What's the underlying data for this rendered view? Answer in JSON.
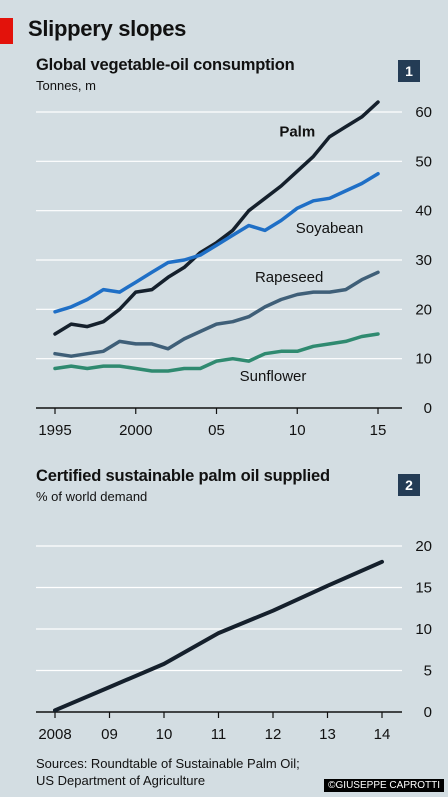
{
  "title": "Slippery slopes",
  "sources_line1": "Sources: Roundtable of Sustainable Palm Oil;",
  "sources_line2": "US Department of Agriculture",
  "credit": "©GIUSEPPE CAPROTTI",
  "colors": {
    "background": "#d3dde2",
    "accent_red": "#e3120b",
    "badge": "#243c55",
    "palm": "#15202c",
    "soyabean": "#1f6fc6",
    "rapeseed": "#3f5f78",
    "sunflower": "#2f8a70"
  },
  "chart_data": [
    {
      "type": "line",
      "badge": "1",
      "title": "Global vegetable-oil consumption",
      "subtitle": "Tonnes, m",
      "xlim": [
        1995,
        2015
      ],
      "ylim": [
        0,
        60
      ],
      "yticks": [
        0,
        10,
        20,
        30,
        40,
        50,
        60
      ],
      "xticks": [
        1995,
        2000,
        2005,
        2010,
        2015
      ],
      "xtick_labels": [
        "1995",
        "2000",
        "05",
        "10",
        "15"
      ],
      "grid": true,
      "x": [
        1995,
        1996,
        1997,
        1998,
        1999,
        2000,
        2001,
        2002,
        2003,
        2004,
        2005,
        2006,
        2007,
        2008,
        2009,
        2010,
        2011,
        2012,
        2013,
        2014,
        2015
      ],
      "series": [
        {
          "name": "Palm",
          "color": "#15202c",
          "label_pos": [
            2010,
            55
          ],
          "label_bold": true,
          "values": [
            15,
            17,
            16.5,
            17.5,
            20,
            23.5,
            24,
            26.5,
            28.5,
            31.5,
            33.5,
            36,
            40,
            42.5,
            45,
            48,
            51,
            55,
            57,
            59,
            62
          ]
        },
        {
          "name": "Soyabean",
          "color": "#1f6fc6",
          "label_pos": [
            2012,
            35.5
          ],
          "label_bold": false,
          "values": [
            19.5,
            20.5,
            22,
            24,
            23.5,
            25.5,
            27.5,
            29.5,
            30,
            31,
            33,
            35,
            37,
            36,
            38,
            40.5,
            42,
            42.5,
            44,
            45.5,
            47.5
          ]
        },
        {
          "name": "Rapeseed",
          "color": "#3f5f78",
          "label_pos": [
            2009.5,
            25.5
          ],
          "label_bold": false,
          "values": [
            11,
            10.5,
            11,
            11.5,
            13.5,
            13,
            13,
            12,
            14,
            15.5,
            17,
            17.5,
            18.5,
            20.5,
            22,
            23,
            23.5,
            23.5,
            24,
            26,
            27.5
          ]
        },
        {
          "name": "Sunflower",
          "color": "#2f8a70",
          "label_pos": [
            2008.5,
            5.5
          ],
          "label_bold": false,
          "values": [
            8,
            8.5,
            8,
            8.5,
            8.5,
            8,
            7.5,
            7.5,
            8,
            8,
            9.5,
            10,
            9.5,
            11,
            11.5,
            11.5,
            12.5,
            13,
            13.5,
            14.5,
            15
          ]
        }
      ]
    },
    {
      "type": "line",
      "badge": "2",
      "title": "Certified sustainable palm oil supplied",
      "subtitle": "% of world demand",
      "xlim": [
        2008,
        2014
      ],
      "ylim": [
        0,
        20
      ],
      "yticks": [
        0,
        5,
        10,
        15,
        20
      ],
      "xticks": [
        2008,
        2009,
        2010,
        2011,
        2012,
        2013,
        2014
      ],
      "xtick_labels": [
        "2008",
        "09",
        "10",
        "11",
        "12",
        "13",
        "14"
      ],
      "grid": true,
      "x": [
        2008,
        2009,
        2010,
        2011,
        2012,
        2013,
        2014
      ],
      "series": [
        {
          "name": "",
          "color": "#15202c",
          "values": [
            0.2,
            3,
            5.8,
            9.5,
            12.2,
            15.2,
            18.1
          ]
        }
      ]
    }
  ]
}
